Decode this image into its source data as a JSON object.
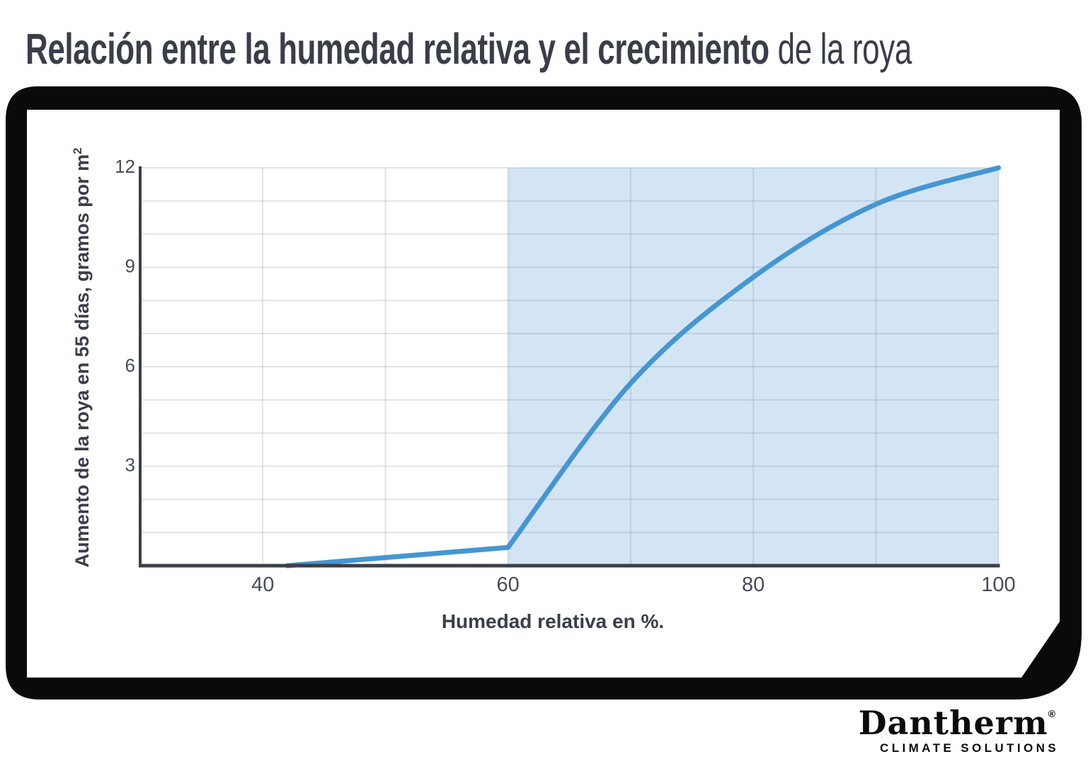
{
  "title": {
    "bold": "Relación entre la humedad relativa y el crecimiento",
    "regular": " de la roya"
  },
  "logo": {
    "brand": "Dantherm",
    "registered": "®",
    "tagline": "CLIMATE SOLUTIONS"
  },
  "colors": {
    "curve_blue": "#4596d2",
    "shade_blue": "#d3e5f5",
    "axis_dark": "#3a3f49",
    "text_dark": "#3a3e49",
    "frame_black": "#0a0a0a"
  },
  "chart_data": {
    "type": "line",
    "title": "Relación entre la humedad relativa y el crecimiento de la roya",
    "xlabel": "Humedad relativa en %.",
    "ylabel": "Aumento de la roya en 55 días, gramos por m²",
    "ylabel_main": "Aumento de la roya en 55 días, gramos por m",
    "ylabel_sup": "2",
    "xlim": [
      30,
      100
    ],
    "ylim": [
      0,
      12
    ],
    "x_ticks": [
      40,
      60,
      80,
      100
    ],
    "y_ticks": [
      3,
      6,
      9,
      12
    ],
    "x_gridlines": [
      40,
      50,
      60,
      70,
      80,
      90,
      100
    ],
    "y_gridline_step": 1,
    "grid": true,
    "legend_position": "none",
    "shaded_region": {
      "x_from": 60,
      "x_to": 100,
      "color": "#d3e5f5"
    },
    "series": [
      {
        "name": "Aumento de la roya en 55 días",
        "color": "#4596d2",
        "stroke_width": 7,
        "linear_until_index": 1,
        "points": [
          [
            42,
            0
          ],
          [
            60,
            0.55
          ],
          [
            70,
            5.5
          ],
          [
            80,
            8.7
          ],
          [
            90,
            10.9
          ],
          [
            100,
            12
          ]
        ]
      }
    ]
  }
}
